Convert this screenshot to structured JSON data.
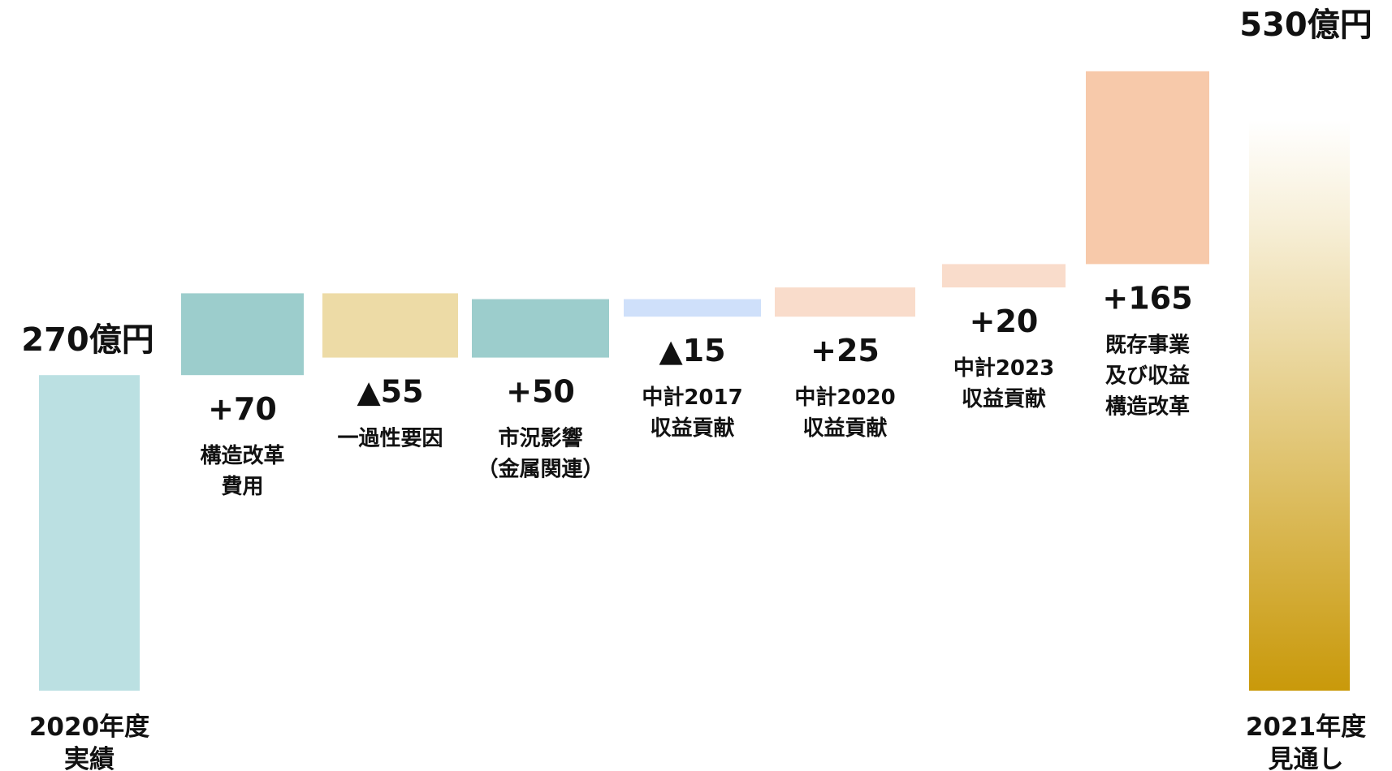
{
  "chart_data": {
    "type": "waterfall",
    "unit": "億円",
    "start": {
      "value": 270,
      "value_label": "270億円",
      "category": [
        "2020年度",
        "実績"
      ],
      "color": "#bbe0e2"
    },
    "steps": [
      {
        "value": 70,
        "value_label": "+70",
        "description": [
          "構造改革",
          "費用"
        ],
        "color": "#9ccdcc"
      },
      {
        "value": -55,
        "value_label": "▲55",
        "description": [
          "一過性要因"
        ],
        "color": "#eddba6"
      },
      {
        "value": 50,
        "value_label": "+50",
        "description": [
          "市況影響",
          "（金属関連）"
        ],
        "color": "#9ccdcc"
      },
      {
        "value": -15,
        "value_label": "▲15",
        "description": [
          "中計2017",
          "収益貢献"
        ],
        "color": "#cfe0fa"
      },
      {
        "value": 25,
        "value_label": "+25",
        "description": [
          "中計2020",
          "収益貢献"
        ],
        "color": "#f9dccb"
      },
      {
        "value": 20,
        "value_label": "+20",
        "description": [
          "中計2023",
          "収益貢献"
        ],
        "color": "#f9dccb"
      },
      {
        "value": 165,
        "value_label": "+165",
        "description": [
          "既存事業",
          "及び収益",
          "構造改革"
        ],
        "color": "#f7c9aa"
      }
    ],
    "end": {
      "value": 530,
      "value_label": "530億円",
      "category": [
        "2021年度",
        "見通し"
      ],
      "gradient_top": "#ffffff",
      "gradient_bottom": "#c9990a"
    }
  }
}
